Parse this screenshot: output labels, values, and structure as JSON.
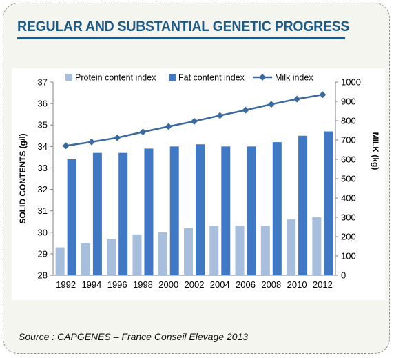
{
  "title": "REGULAR AND SUBSTANTIAL GENETIC PROGRESS",
  "source": "Source : CAPGENES – France Conseil Elevage 2013",
  "colors": {
    "title": "#1f5a86",
    "protein": "#a7bedd",
    "fat": "#3f79c6",
    "milk": "#3a6a9e"
  },
  "chart_data": {
    "type": "bar",
    "categories": [
      "1992",
      "1994",
      "1996",
      "1998",
      "2000",
      "2002",
      "2004",
      "2006",
      "2008",
      "2010",
      "2012"
    ],
    "ylabel": "SOLID CONTENTS (g/l)",
    "ylabel_right": "MILK (kg)",
    "ylim": [
      28,
      37
    ],
    "yticks": [
      28,
      29,
      30,
      31,
      32,
      33,
      34,
      35,
      36,
      37
    ],
    "y2lim": [
      0,
      1000
    ],
    "y2ticks": [
      0,
      100,
      200,
      300,
      400,
      500,
      600,
      700,
      800,
      900,
      1000
    ],
    "legend_position": "top",
    "grid": false,
    "series": [
      {
        "name": "Protein content index",
        "type": "bar",
        "axis": "left",
        "values": [
          29.3,
          29.5,
          29.7,
          29.9,
          30.0,
          30.2,
          30.3,
          30.3,
          30.3,
          30.6,
          30.7
        ]
      },
      {
        "name": "Fat content index",
        "type": "bar",
        "axis": "left",
        "values": [
          33.4,
          33.7,
          33.7,
          33.9,
          34.0,
          34.1,
          34.0,
          34.0,
          34.2,
          34.5,
          34.7
        ]
      },
      {
        "name": "Milk index",
        "type": "line",
        "axis": "right",
        "marker": "diamond",
        "values": [
          670,
          690,
          712,
          742,
          770,
          797,
          827,
          855,
          885,
          912,
          935
        ]
      }
    ]
  }
}
